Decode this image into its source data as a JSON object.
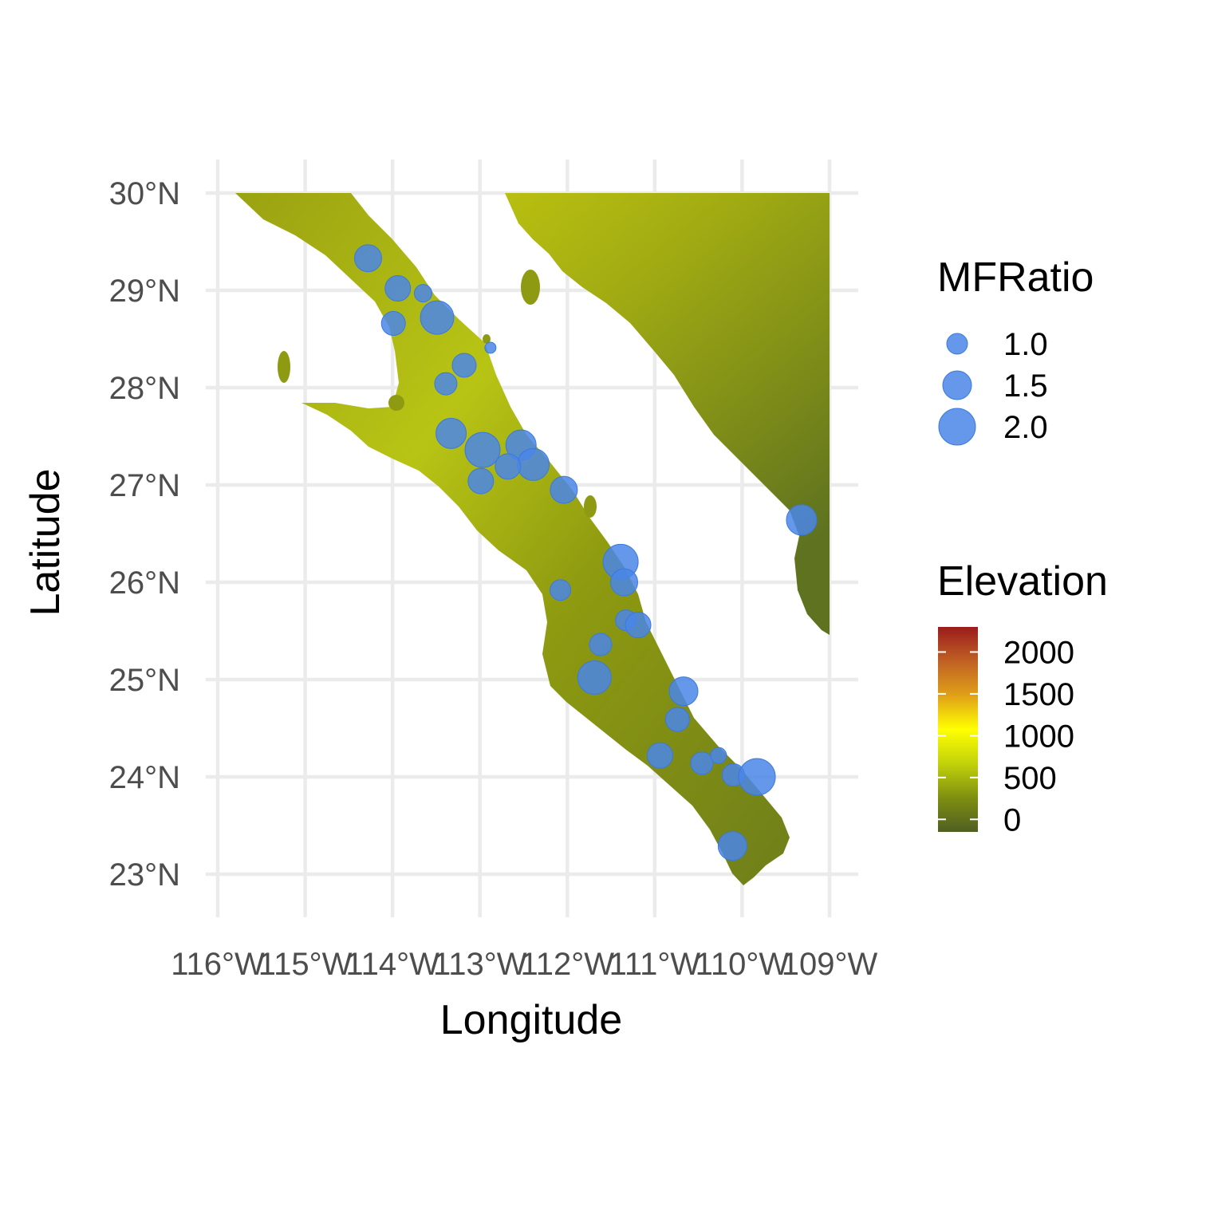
{
  "chart_data": {
    "type": "scatter",
    "xlabel": "Longitude",
    "ylabel": "Latitude",
    "xlim": [
      -116.0,
      -109.0
    ],
    "ylim": [
      23.0,
      30.0
    ],
    "x_ticks": [
      -116,
      -115,
      -114,
      -113,
      -112,
      -111,
      -110,
      -109
    ],
    "x_tick_labels": [
      "116°W",
      "115°W",
      "114°W",
      "113°W",
      "112°W",
      "111°W",
      "110°W",
      "109°W"
    ],
    "y_ticks": [
      23,
      24,
      25,
      26,
      27,
      28,
      29,
      30
    ],
    "y_tick_labels": [
      "23°N",
      "24°N",
      "25°N",
      "26°N",
      "27°N",
      "28°N",
      "29°N",
      "30°N"
    ],
    "grid": true,
    "point_color": "#4a86e8",
    "size_legend": {
      "title": "MFRatio",
      "values": [
        1.0,
        1.5,
        2.0
      ],
      "labels": [
        "1.0",
        "1.5",
        "2.0"
      ]
    },
    "color_legend": {
      "title": "Elevation",
      "values": [
        0,
        500,
        1000,
        1500,
        2000
      ],
      "labels": [
        "0",
        "500",
        "1000",
        "1500",
        "2000"
      ],
      "range": [
        -150,
        2300
      ],
      "colors": [
        "#4f5f22",
        "#7f8f10",
        "#c2d20a",
        "#ffff00",
        "#e0a018",
        "#c06024",
        "#9b1c1c"
      ]
    },
    "points": [
      {
        "lon": -114.28,
        "lat": 29.33,
        "mf": 1.4
      },
      {
        "lon": -113.94,
        "lat": 29.02,
        "mf": 1.3
      },
      {
        "lon": -113.65,
        "lat": 28.97,
        "mf": 0.8
      },
      {
        "lon": -113.49,
        "lat": 28.72,
        "mf": 1.8
      },
      {
        "lon": -113.99,
        "lat": 28.66,
        "mf": 1.2
      },
      {
        "lon": -112.88,
        "lat": 28.41,
        "mf": 0.4
      },
      {
        "lon": -113.18,
        "lat": 28.23,
        "mf": 1.2
      },
      {
        "lon": -113.39,
        "lat": 28.04,
        "mf": 1.1
      },
      {
        "lon": -113.33,
        "lat": 27.53,
        "mf": 1.6
      },
      {
        "lon": -112.97,
        "lat": 27.36,
        "mf": 1.9
      },
      {
        "lon": -112.53,
        "lat": 27.41,
        "mf": 1.6
      },
      {
        "lon": -112.39,
        "lat": 27.21,
        "mf": 1.7
      },
      {
        "lon": -112.68,
        "lat": 27.19,
        "mf": 1.3
      },
      {
        "lon": -112.99,
        "lat": 27.04,
        "mf": 1.3
      },
      {
        "lon": -112.04,
        "lat": 26.95,
        "mf": 1.4
      },
      {
        "lon": -109.32,
        "lat": 26.64,
        "mf": 1.6
      },
      {
        "lon": -111.39,
        "lat": 26.21,
        "mf": 1.9
      },
      {
        "lon": -111.35,
        "lat": 26.0,
        "mf": 1.4
      },
      {
        "lon": -112.08,
        "lat": 25.92,
        "mf": 1.0
      },
      {
        "lon": -111.33,
        "lat": 25.61,
        "mf": 1.0
      },
      {
        "lon": -111.19,
        "lat": 25.56,
        "mf": 1.3
      },
      {
        "lon": -111.62,
        "lat": 25.36,
        "mf": 1.1
      },
      {
        "lon": -111.69,
        "lat": 25.02,
        "mf": 1.8
      },
      {
        "lon": -110.67,
        "lat": 24.88,
        "mf": 1.5
      },
      {
        "lon": -110.74,
        "lat": 24.59,
        "mf": 1.2
      },
      {
        "lon": -110.94,
        "lat": 24.22,
        "mf": 1.3
      },
      {
        "lon": -110.46,
        "lat": 24.14,
        "mf": 1.1
      },
      {
        "lon": -110.27,
        "lat": 24.22,
        "mf": 0.7
      },
      {
        "lon": -110.1,
        "lat": 24.02,
        "mf": 1.1
      },
      {
        "lon": -109.83,
        "lat": 24.0,
        "mf": 2.0
      },
      {
        "lon": -110.11,
        "lat": 23.29,
        "mf": 1.5
      }
    ]
  }
}
